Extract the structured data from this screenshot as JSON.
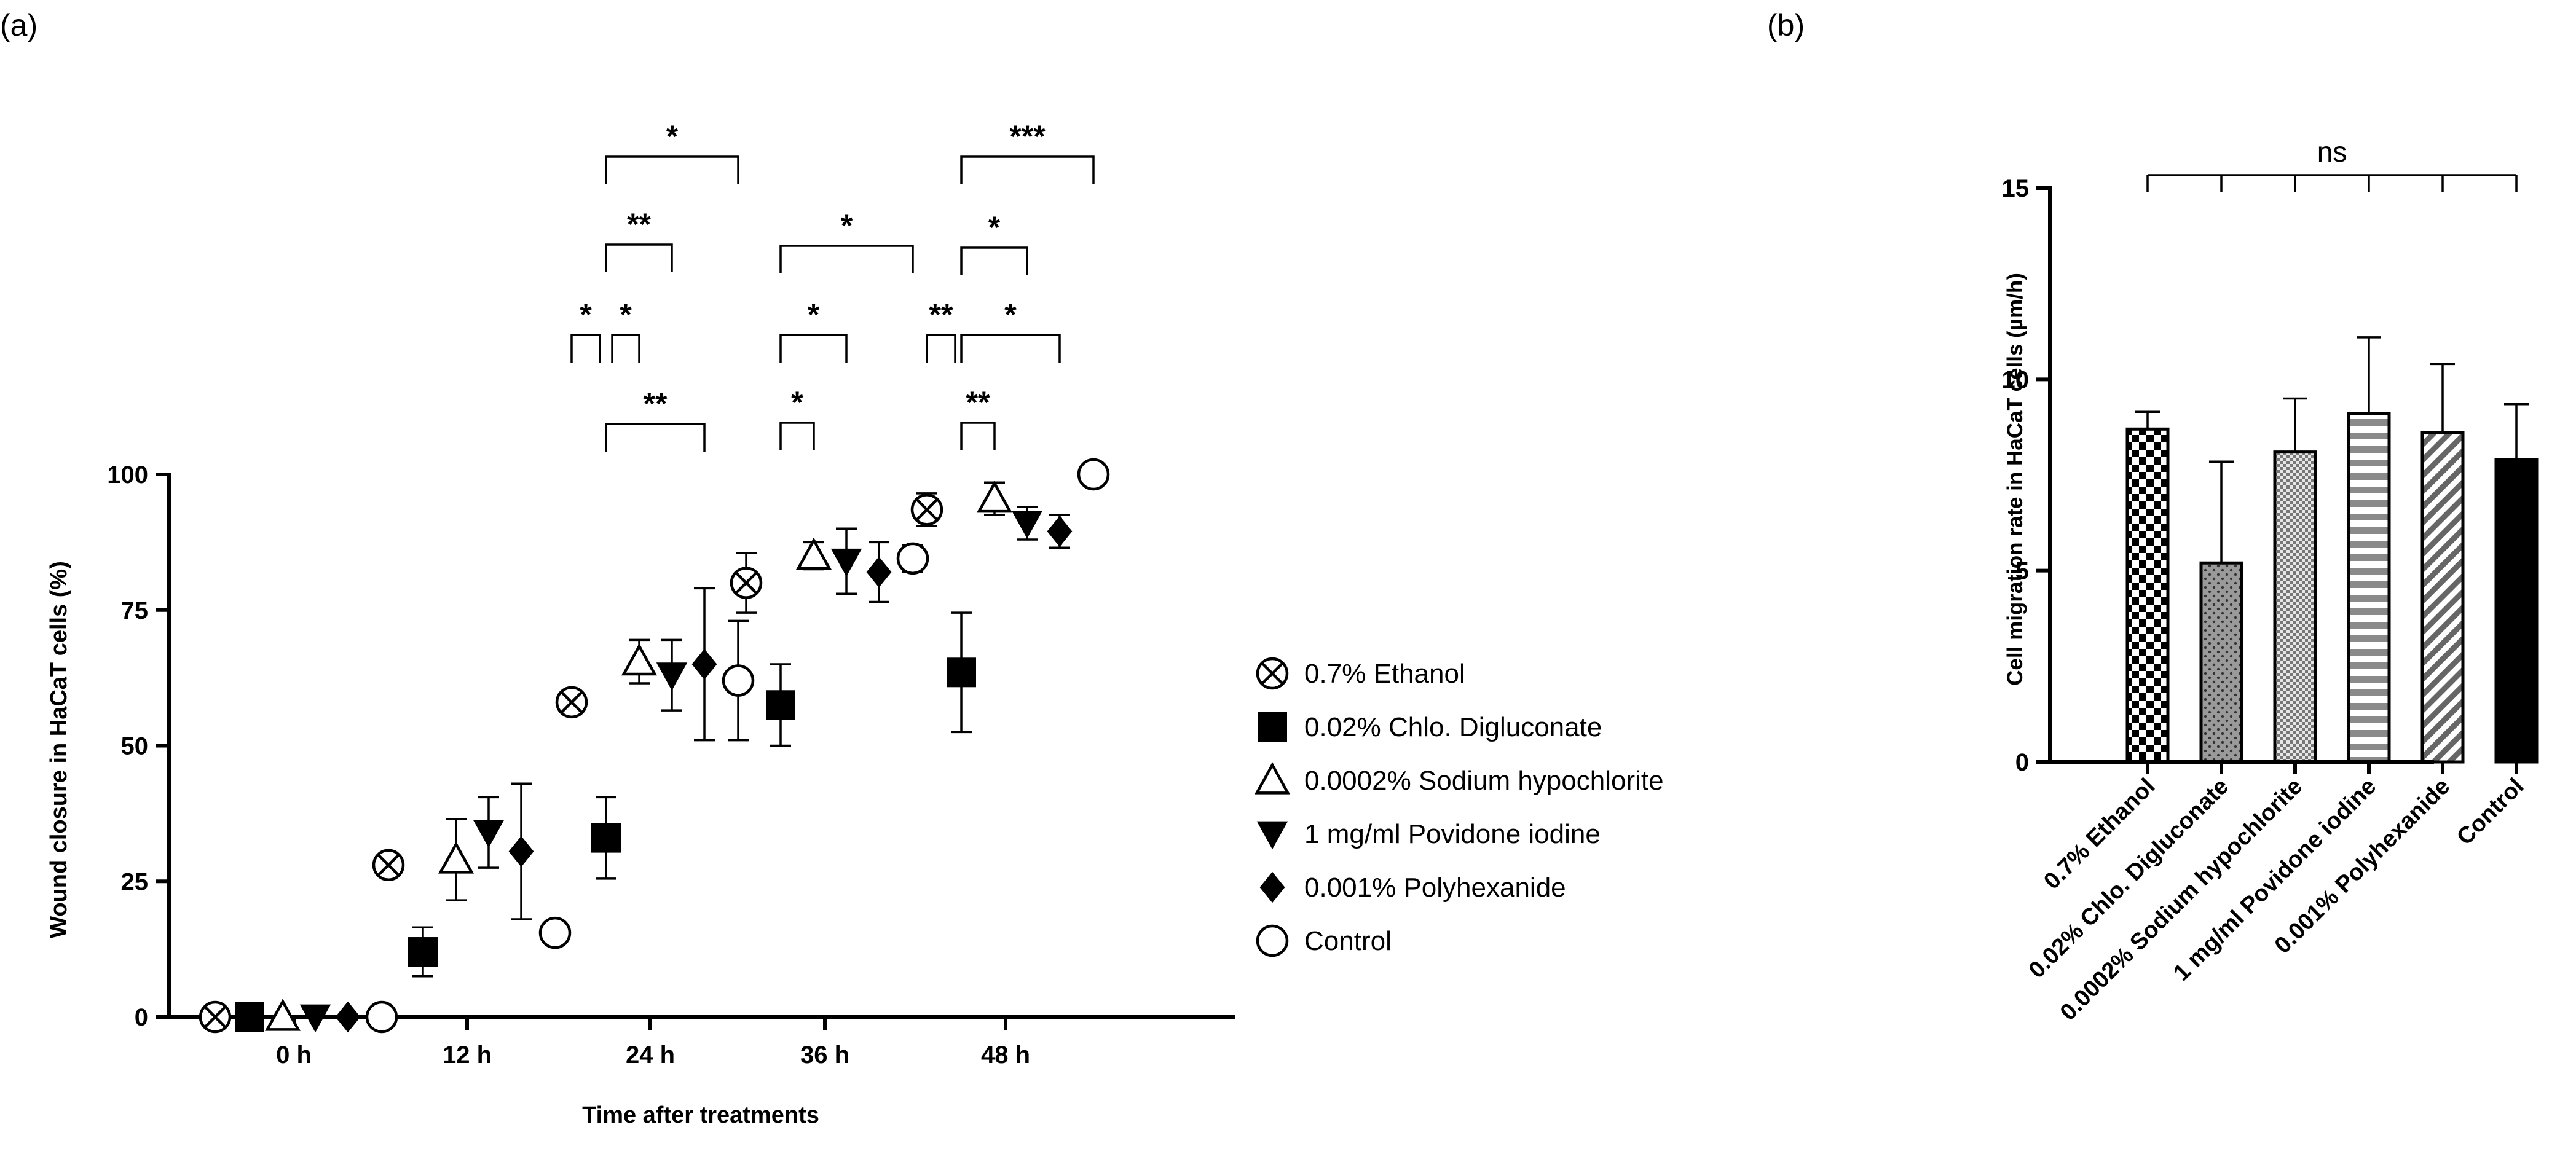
{
  "panels": {
    "a": "(a)",
    "b": "(b)"
  },
  "chart_data": [
    {
      "type": "scatter",
      "panel": "(a)",
      "xlabel": "Time after treatments",
      "ylabel": "Wound closure in HaCaT cells (%)",
      "ylim": [
        0,
        100
      ],
      "yticks": [
        0,
        25,
        50,
        75,
        100
      ],
      "categories": [
        "0 h",
        "12 h",
        "24 h",
        "36 h",
        "48 h"
      ],
      "series": [
        {
          "name": "0.7% Ethanol",
          "marker": "circle-x",
          "values": [
            0,
            28,
            58,
            80,
            93.5
          ],
          "errors": [
            0,
            1,
            2,
            5.5,
            3
          ]
        },
        {
          "name": "0.02% Chlo. Digluconate",
          "marker": "square",
          "values": [
            0,
            12,
            33,
            57.5,
            63.5
          ],
          "errors": [
            0,
            4.5,
            7.5,
            7.5,
            11
          ]
        },
        {
          "name": "0.0002% Sodium hypochlorite",
          "marker": "triangle-up-open",
          "values": [
            0,
            29,
            65.5,
            85,
            95.5
          ],
          "errors": [
            0,
            7.5,
            4,
            2.5,
            3
          ]
        },
        {
          "name": "1 mg/ml Povidone iodine",
          "marker": "triangle-down",
          "values": [
            0,
            34,
            63,
            84,
            91
          ],
          "errors": [
            0,
            6.5,
            6.5,
            6,
            3
          ]
        },
        {
          "name": "0.001% Polyhexanide",
          "marker": "diamond",
          "values": [
            0,
            30.5,
            65,
            82,
            89.5
          ],
          "errors": [
            0,
            12.5,
            14,
            5.5,
            3
          ]
        },
        {
          "name": "Control",
          "marker": "circle-open",
          "values": [
            0,
            15.5,
            62,
            84.5,
            100
          ],
          "errors": [
            0,
            1,
            11,
            2.5,
            1
          ]
        }
      ],
      "significance": [
        {
          "group": "24 h",
          "from": 0,
          "to": 1,
          "label": "*"
        },
        {
          "group": "24 h",
          "from": 1,
          "to": 2,
          "label": "*"
        },
        {
          "group": "24 h",
          "from": 1,
          "to": 3,
          "label": "**"
        },
        {
          "group": "24 h",
          "from": 1,
          "to": 4,
          "label": "**"
        },
        {
          "group": "24 h",
          "from": 1,
          "to": 5,
          "label": "*"
        },
        {
          "group": "36 h",
          "from": 1,
          "to": 2,
          "label": "*"
        },
        {
          "group": "36 h",
          "from": 1,
          "to": 3,
          "label": "*"
        },
        {
          "group": "36 h",
          "from": 1,
          "to": 5,
          "label": "*"
        },
        {
          "group": "48 h",
          "from": 0,
          "to": 1,
          "label": "**"
        },
        {
          "group": "48 h",
          "from": 1,
          "to": 2,
          "label": "**"
        },
        {
          "group": "48 h",
          "from": 1,
          "to": 3,
          "label": "*"
        },
        {
          "group": "48 h",
          "from": 1,
          "to": 4,
          "label": "*"
        },
        {
          "group": "48 h",
          "from": 1,
          "to": 5,
          "label": "***"
        }
      ]
    },
    {
      "type": "bar",
      "panel": "(b)",
      "ylabel": "Cell migration rate in HaCaT cells (µm/h)",
      "ylim": [
        0,
        15
      ],
      "yticks": [
        0,
        5,
        10,
        15
      ],
      "categories": [
        "0.7% Ethanol",
        "0.02% Chlo. Digluconate",
        "0.0002% Sodium hypochlorite",
        "1 mg/ml Povidone iodine",
        "0.001% Polyhexanide",
        "Control"
      ],
      "values": [
        8.7,
        5.2,
        8.1,
        9.1,
        8.6,
        7.9
      ],
      "errors": [
        0.45,
        2.65,
        1.4,
        2.0,
        1.8,
        1.45
      ],
      "fills": [
        "checker",
        "dots",
        "fine-check",
        "horizontal-stripes",
        "diagonal-stripes",
        "solid-black"
      ],
      "significance_label": "ns"
    }
  ]
}
